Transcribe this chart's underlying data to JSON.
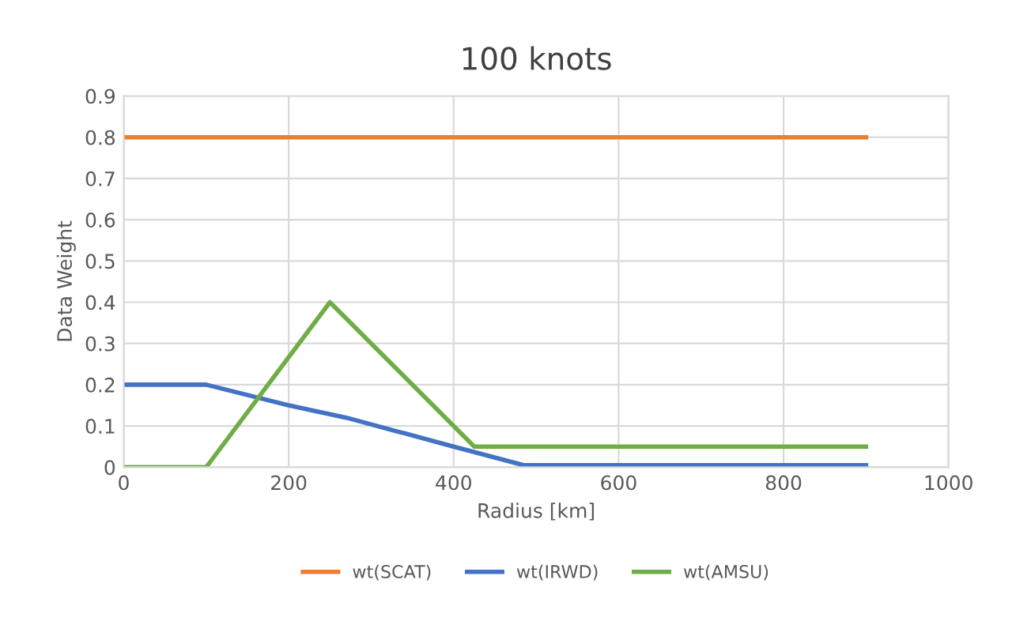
{
  "chart_data": {
    "type": "line",
    "title": "100 knots",
    "xlabel": "Radius [km]",
    "ylabel": "Data Weight",
    "xlim": [
      0,
      1000
    ],
    "xticks": [
      0,
      200,
      400,
      600,
      800,
      1000
    ],
    "ylim": [
      0,
      0.9
    ],
    "yticks": [
      0,
      0.1,
      0.2,
      0.3,
      0.4,
      0.5,
      0.6,
      0.7,
      0.8,
      0.9
    ],
    "grid": true,
    "legend": "bottom",
    "marker": "none",
    "line_style": "solid",
    "series": [
      {
        "name": "wt(SCAT)",
        "color": "#ed7d31",
        "x": [
          0,
          900
        ],
        "values": [
          0.8,
          0.8
        ]
      },
      {
        "name": "wt(IRWD)",
        "color": "#4472c4",
        "x": [
          0,
          100,
          200,
          270,
          400,
          485,
          900
        ],
        "values": [
          0.2,
          0.2,
          0.15,
          0.12,
          0.05,
          0.005,
          0.005
        ]
      },
      {
        "name": "wt(AMSU)",
        "color": "#70ad47",
        "x": [
          0,
          100,
          250,
          425,
          900
        ],
        "values": [
          0,
          0,
          0.4,
          0.05,
          0.05
        ]
      }
    ]
  }
}
